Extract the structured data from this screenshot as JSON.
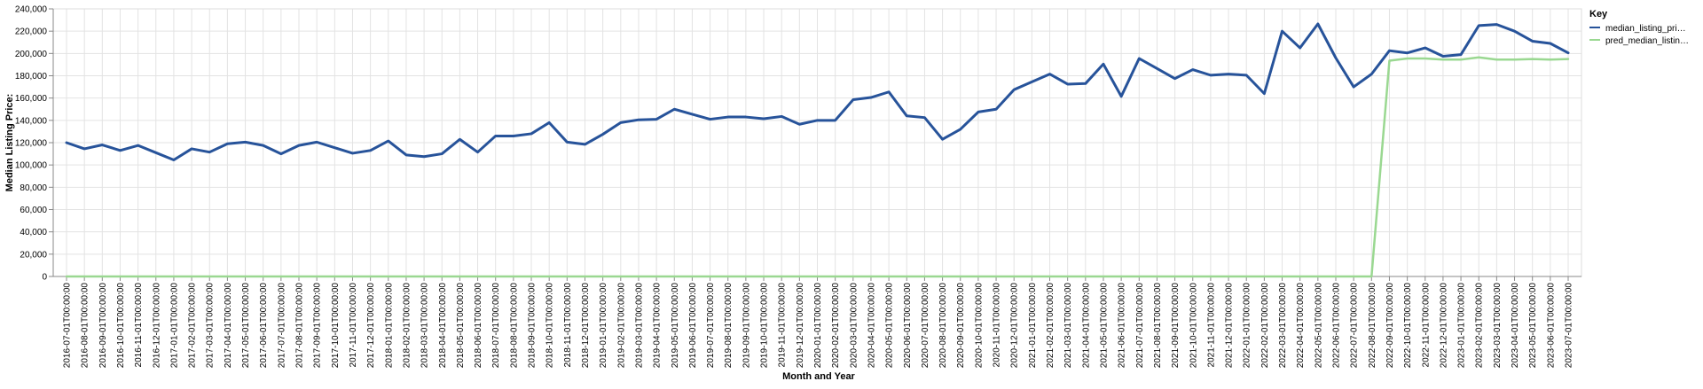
{
  "chart_data": {
    "type": "line",
    "x": [
      "2016-07-01T00:00:00",
      "2016-08-01T00:00:00",
      "2016-09-01T00:00:00",
      "2016-10-01T00:00:00",
      "2016-11-01T00:00:00",
      "2016-12-01T00:00:00",
      "2017-01-01T00:00:00",
      "2017-02-01T00:00:00",
      "2017-03-01T00:00:00",
      "2017-04-01T00:00:00",
      "2017-05-01T00:00:00",
      "2017-06-01T00:00:00",
      "2017-07-01T00:00:00",
      "2017-08-01T00:00:00",
      "2017-09-01T00:00:00",
      "2017-10-01T00:00:00",
      "2017-11-01T00:00:00",
      "2017-12-01T00:00:00",
      "2018-01-01T00:00:00",
      "2018-02-01T00:00:00",
      "2018-03-01T00:00:00",
      "2018-04-01T00:00:00",
      "2018-05-01T00:00:00",
      "2018-06-01T00:00:00",
      "2018-07-01T00:00:00",
      "2018-08-01T00:00:00",
      "2018-09-01T00:00:00",
      "2018-10-01T00:00:00",
      "2018-11-01T00:00:00",
      "2018-12-01T00:00:00",
      "2019-01-01T00:00:00",
      "2019-02-01T00:00:00",
      "2019-03-01T00:00:00",
      "2019-04-01T00:00:00",
      "2019-05-01T00:00:00",
      "2019-06-01T00:00:00",
      "2019-07-01T00:00:00",
      "2019-08-01T00:00:00",
      "2019-09-01T00:00:00",
      "2019-10-01T00:00:00",
      "2019-11-01T00:00:00",
      "2019-12-01T00:00:00",
      "2020-01-01T00:00:00",
      "2020-02-01T00:00:00",
      "2020-03-01T00:00:00",
      "2020-04-01T00:00:00",
      "2020-05-01T00:00:00",
      "2020-06-01T00:00:00",
      "2020-07-01T00:00:00",
      "2020-08-01T00:00:00",
      "2020-09-01T00:00:00",
      "2020-10-01T00:00:00",
      "2020-11-01T00:00:00",
      "2020-12-01T00:00:00",
      "2021-01-01T00:00:00",
      "2021-02-01T00:00:00",
      "2021-03-01T00:00:00",
      "2021-04-01T00:00:00",
      "2021-05-01T00:00:00",
      "2021-06-01T00:00:00",
      "2021-07-01T00:00:00",
      "2021-08-01T00:00:00",
      "2021-09-01T00:00:00",
      "2021-10-01T00:00:00",
      "2021-11-01T00:00:00",
      "2021-12-01T00:00:00",
      "2022-01-01T00:00:00",
      "2022-02-01T00:00:00",
      "2022-03-01T00:00:00",
      "2022-04-01T00:00:00",
      "2022-05-01T00:00:00",
      "2022-06-01T00:00:00",
      "2022-07-01T00:00:00",
      "2022-08-01T00:00:00",
      "2022-09-01T00:00:00",
      "2022-10-01T00:00:00",
      "2022-11-01T00:00:00",
      "2022-12-01T00:00:00",
      "2023-01-01T00:00:00",
      "2023-02-01T00:00:00",
      "2023-03-01T00:00:00",
      "2023-04-01T00:00:00",
      "2023-05-01T00:00:00",
      "2023-06-01T00:00:00",
      "2023-07-01T00:00:00"
    ],
    "series": [
      {
        "name": "median_listing_pri…",
        "color": "#27539a",
        "values": [
          120000,
          114500,
          118000,
          113000,
          117500,
          111000,
          104500,
          114500,
          111500,
          119000,
          120500,
          117500,
          110000,
          117500,
          120500,
          115500,
          110500,
          113000,
          121500,
          109000,
          107500,
          110000,
          123000,
          111500,
          126000,
          126000,
          128000,
          138000,
          120500,
          118500,
          127500,
          138000,
          140500,
          141000,
          150000,
          145500,
          141000,
          143000,
          143000,
          141500,
          143500,
          136500,
          140000,
          140000,
          158500,
          160500,
          165500,
          144000,
          142500,
          123000,
          132000,
          147500,
          150000,
          167500,
          174500,
          181500,
          172500,
          173000,
          190500,
          161500,
          195500,
          186500,
          177500,
          185500,
          180500,
          181500,
          180500,
          164000,
          220000,
          205000,
          226500,
          196000,
          170000,
          181500,
          202500,
          200500,
          205000,
          197500,
          199000,
          225000,
          226000,
          220000,
          211000,
          209000,
          200500
        ]
      },
      {
        "name": "pred_median_listin…",
        "color": "#9ad891",
        "values": [
          0,
          0,
          0,
          0,
          0,
          0,
          0,
          0,
          0,
          0,
          0,
          0,
          0,
          0,
          0,
          0,
          0,
          0,
          0,
          0,
          0,
          0,
          0,
          0,
          0,
          0,
          0,
          0,
          0,
          0,
          0,
          0,
          0,
          0,
          0,
          0,
          0,
          0,
          0,
          0,
          0,
          0,
          0,
          0,
          0,
          0,
          0,
          0,
          0,
          0,
          0,
          0,
          0,
          0,
          0,
          0,
          0,
          0,
          0,
          0,
          0,
          0,
          0,
          0,
          0,
          0,
          0,
          0,
          0,
          0,
          0,
          0,
          0,
          0,
          193500,
          195500,
          195500,
          194500,
          194500,
          196500,
          194500,
          194500,
          195000,
          194500,
          195000
        ]
      }
    ],
    "title": "",
    "xlabel": "Month and Year",
    "ylabel": "Median Listing Price:",
    "ylim": [
      0,
      240000
    ],
    "yticks": [
      "0",
      "20,000",
      "40,000",
      "60,000",
      "80,000",
      "100,000",
      "120,000",
      "140,000",
      "160,000",
      "180,000",
      "200,000",
      "220,000",
      "240,000"
    ],
    "grid": true,
    "legend_title": "Key",
    "legend_position": "top-right"
  }
}
